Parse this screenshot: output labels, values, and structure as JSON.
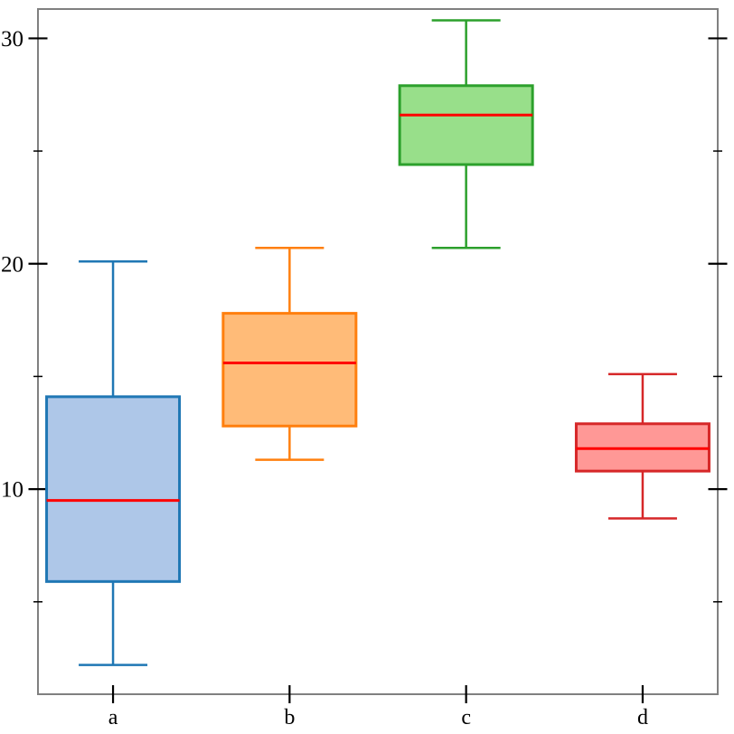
{
  "figure": {
    "background": "#ffffff",
    "frame_color": "#808080",
    "tick_color": "#000000",
    "median_color": "#ff0000"
  },
  "chart_data": {
    "type": "boxplot",
    "title": "",
    "xlabel": "",
    "ylabel": "",
    "categories": [
      "a",
      "b",
      "c",
      "d"
    ],
    "ylim": [
      0.9,
      31.3
    ],
    "yticks_major": [
      10,
      20,
      30
    ],
    "yticks_minor": [
      5,
      15,
      25
    ],
    "grid": false,
    "legend": false,
    "frame": "full-box",
    "tick_style": "crossing",
    "series": [
      {
        "name": "a",
        "whisker_low": 2.2,
        "q1": 5.9,
        "median": 9.5,
        "q3": 14.1,
        "whisker_high": 20.1,
        "stroke": "#1f77b4",
        "fill": "#aec7e8"
      },
      {
        "name": "b",
        "whisker_low": 11.3,
        "q1": 12.8,
        "median": 15.6,
        "q3": 17.8,
        "whisker_high": 20.7,
        "stroke": "#ff7f0e",
        "fill": "#ffbb78"
      },
      {
        "name": "c",
        "whisker_low": 20.7,
        "q1": 24.4,
        "median": 26.6,
        "q3": 27.9,
        "whisker_high": 30.8,
        "stroke": "#2ca02c",
        "fill": "#98df8a"
      },
      {
        "name": "d",
        "whisker_low": 8.7,
        "q1": 10.8,
        "median": 11.8,
        "q3": 12.9,
        "whisker_high": 15.1,
        "stroke": "#d62728",
        "fill": "#ff9896"
      }
    ]
  }
}
